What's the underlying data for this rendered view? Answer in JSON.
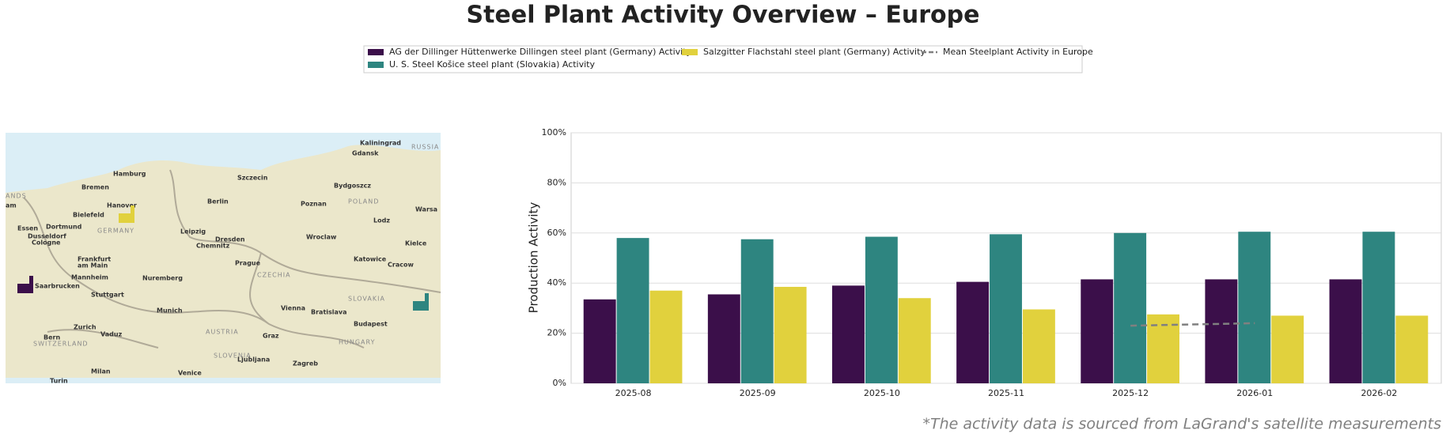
{
  "chart_data": {
    "type": "bar",
    "title": "Steel Plant Activity Overview – Europe",
    "y_label": "Production Activity",
    "footnote": "*The activity data is sourced from LaGrand's satellite measurements",
    "categories": [
      "2025-08",
      "2025-09",
      "2025-10",
      "2025-11",
      "2025-12",
      "2026-01",
      "2026-02"
    ],
    "series": [
      {
        "name": "AG der Dillinger Hüttenwerke Dillingen steel plant (Germany) Activity",
        "color": "#3b0f4a",
        "values": [
          33.5,
          35.5,
          39,
          40.5,
          41.5,
          41.5,
          41.5
        ]
      },
      {
        "name": "U. S. Steel Košice steel plant (Slovakia) Activity",
        "color": "#2e8580",
        "values": [
          58,
          57.5,
          58.5,
          59.5,
          60,
          60.5,
          60.5
        ]
      },
      {
        "name": "Salzgitter Flachstahl steel plant (Germany) Activity",
        "color": "#e1d13d",
        "values": [
          37,
          38.5,
          34,
          29.5,
          27.5,
          27,
          27
        ]
      },
      {
        "name": "Mean Steelplant Activity in Europe",
        "color": "#808080",
        "type": "line",
        "dashed": true,
        "values": [
          null,
          null,
          null,
          null,
          23,
          24,
          null
        ]
      }
    ],
    "ylim": [
      0,
      100
    ],
    "yticks": [
      {
        "value": 0,
        "label": "0%"
      },
      {
        "value": 20,
        "label": "20%"
      },
      {
        "value": 40,
        "label": "40%"
      },
      {
        "value": 60,
        "label": "60%"
      },
      {
        "value": 80,
        "label": "80%"
      },
      {
        "value": 100,
        "label": "100%"
      }
    ],
    "grid": true,
    "legend": "top",
    "map_labels": [
      "Kaliningrad",
      "Gdansk",
      "RUSSIA",
      "Hamburg",
      "Bremen",
      "Szczecin",
      "Bydgoszcz",
      "Hanover",
      "Berlin",
      "Poznan",
      "POLAND",
      "Warsa",
      "Bielefeld",
      "Essen",
      "Dortmund",
      "GERMANY",
      "Leipzig",
      "Lodz",
      "Dusseldorf",
      "Cologne",
      "Dresden",
      "Chemnitz",
      "Wroclaw",
      "Kielce",
      "Frankfurt",
      "am Main",
      "Prague",
      "CZECHIA",
      "Katowice",
      "Cracow",
      "Mannheim",
      "Nuremberg",
      "Saarbrucken",
      "Stuttgart",
      "SLOVAKIA",
      "Munich",
      "Vienna",
      "Bratislava",
      "Zurich",
      "Vaduz",
      "AUSTRIA",
      "Budapest",
      "Bern",
      "SWITZERLAND",
      "Graz",
      "HUNGARY",
      "SLOVENIA",
      "Ljubljana",
      "Zagreb",
      "Milan",
      "Venice",
      "Turin",
      "ANDS",
      "am"
    ]
  }
}
